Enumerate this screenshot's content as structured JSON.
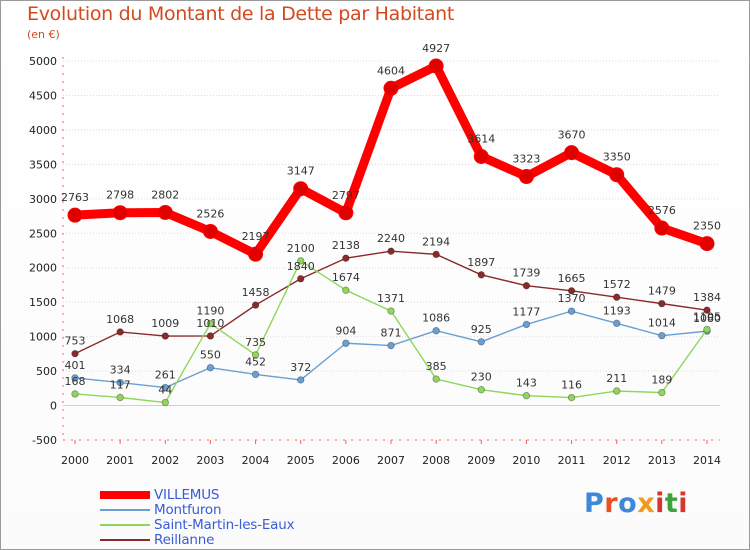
{
  "title": "Evolution du Montant de la Dette par Habitant",
  "subtitle": "(en €)",
  "logo": {
    "text": [
      "P",
      "r",
      "o",
      "x",
      "i",
      "t",
      "i"
    ],
    "colors": [
      "#3f88d8",
      "#e8501f",
      "#3f88d8",
      "#f29a1d",
      "#d9342b",
      "#3fa23a",
      "#d9342b"
    ]
  },
  "chart_data": {
    "type": "line",
    "title": "Evolution du Montant de la Dette par Habitant",
    "ylabel": "(en €)",
    "ylim": [
      -500,
      5000
    ],
    "yticks": [
      "-500",
      "0",
      "500",
      "1000",
      "1500",
      "2000",
      "2500",
      "3000",
      "3500",
      "4000",
      "4500",
      "5000"
    ],
    "categories": [
      "2000",
      "2001",
      "2002",
      "2003",
      "2004",
      "2005",
      "2006",
      "2007",
      "2008",
      "2009",
      "2010",
      "2011",
      "2012",
      "2013",
      "2014"
    ],
    "grid": true,
    "legend": "bottom-left",
    "series": [
      {
        "name": "VILLEMUS",
        "color": "#ff0000",
        "values": [
          2763,
          2798,
          2802,
          2526,
          2197,
          3147,
          2797,
          4604,
          4927,
          3614,
          3323,
          3670,
          3350,
          2576,
          2350
        ],
        "labels": [
          "2763",
          "2798",
          "2802",
          "2526",
          "2197",
          "3147",
          "2797",
          "4604",
          "4927",
          "3614",
          "3323",
          "3670",
          "3350",
          "2576",
          "2350"
        ]
      },
      {
        "name": "Montfuron",
        "color": "#6a9fd4",
        "values": [
          401,
          334,
          261,
          550,
          452,
          372,
          904,
          871,
          1086,
          925,
          1177,
          1370,
          1193,
          1014,
          1080
        ],
        "labels": [
          "401",
          "334",
          "261",
          "550",
          "452",
          "372",
          "904",
          "871",
          "1086",
          "925",
          "1177",
          "1370",
          "1193",
          "1014",
          "1080"
        ]
      },
      {
        "name": "Saint-Martin-les-Eaux",
        "color": "#8fd65a",
        "values": [
          168,
          117,
          44,
          1190,
          735,
          2100,
          1674,
          1371,
          385,
          230,
          143,
          116,
          211,
          189,
          1105
        ],
        "labels": [
          "168",
          "117",
          "44",
          "1190",
          "735",
          "2100",
          "1674",
          "1371",
          "385",
          "230",
          "143",
          "116",
          "211",
          "189",
          "1105"
        ]
      },
      {
        "name": "Reillanne",
        "color": "#8a2a2a",
        "values": [
          753,
          1068,
          1009,
          1010,
          1458,
          1840,
          2138,
          2240,
          2194,
          1897,
          1739,
          1665,
          1572,
          1479,
          1384
        ],
        "labels": [
          "753",
          "1068",
          "1009",
          "1010",
          "1458",
          "1840",
          "2138",
          "2240",
          "2194",
          "1897",
          "1739",
          "1665",
          "1572",
          "1479",
          "1384"
        ]
      }
    ]
  }
}
